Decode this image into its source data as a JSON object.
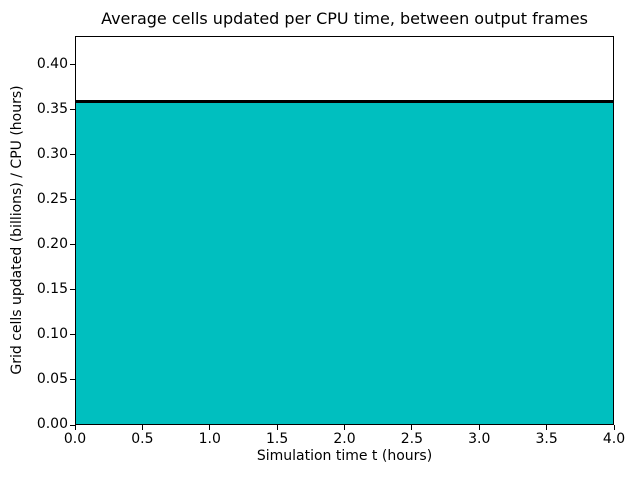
{
  "chart_data": {
    "type": "area",
    "title": "Average cells updated per CPU time, between output frames",
    "xlabel": "Simulation time t (hours)",
    "ylabel": "Grid cells updated (billions) / CPU (hours)",
    "x": [
      0.0,
      4.0
    ],
    "values": [
      0.36,
      0.36
    ],
    "series_value": 0.36,
    "xlim": [
      0.0,
      4.0
    ],
    "ylim": [
      0.0,
      0.432
    ],
    "x_ticks": [
      "0.0",
      "0.5",
      "1.0",
      "1.5",
      "2.0",
      "2.5",
      "3.0",
      "3.5",
      "4.0"
    ],
    "y_ticks": [
      "0.00",
      "0.05",
      "0.10",
      "0.15",
      "0.20",
      "0.25",
      "0.30",
      "0.35",
      "0.40"
    ],
    "fill_color": "#00bfbf",
    "edge_color": "#000000",
    "background_color": "#ffffff",
    "grid": false,
    "legend": null
  }
}
